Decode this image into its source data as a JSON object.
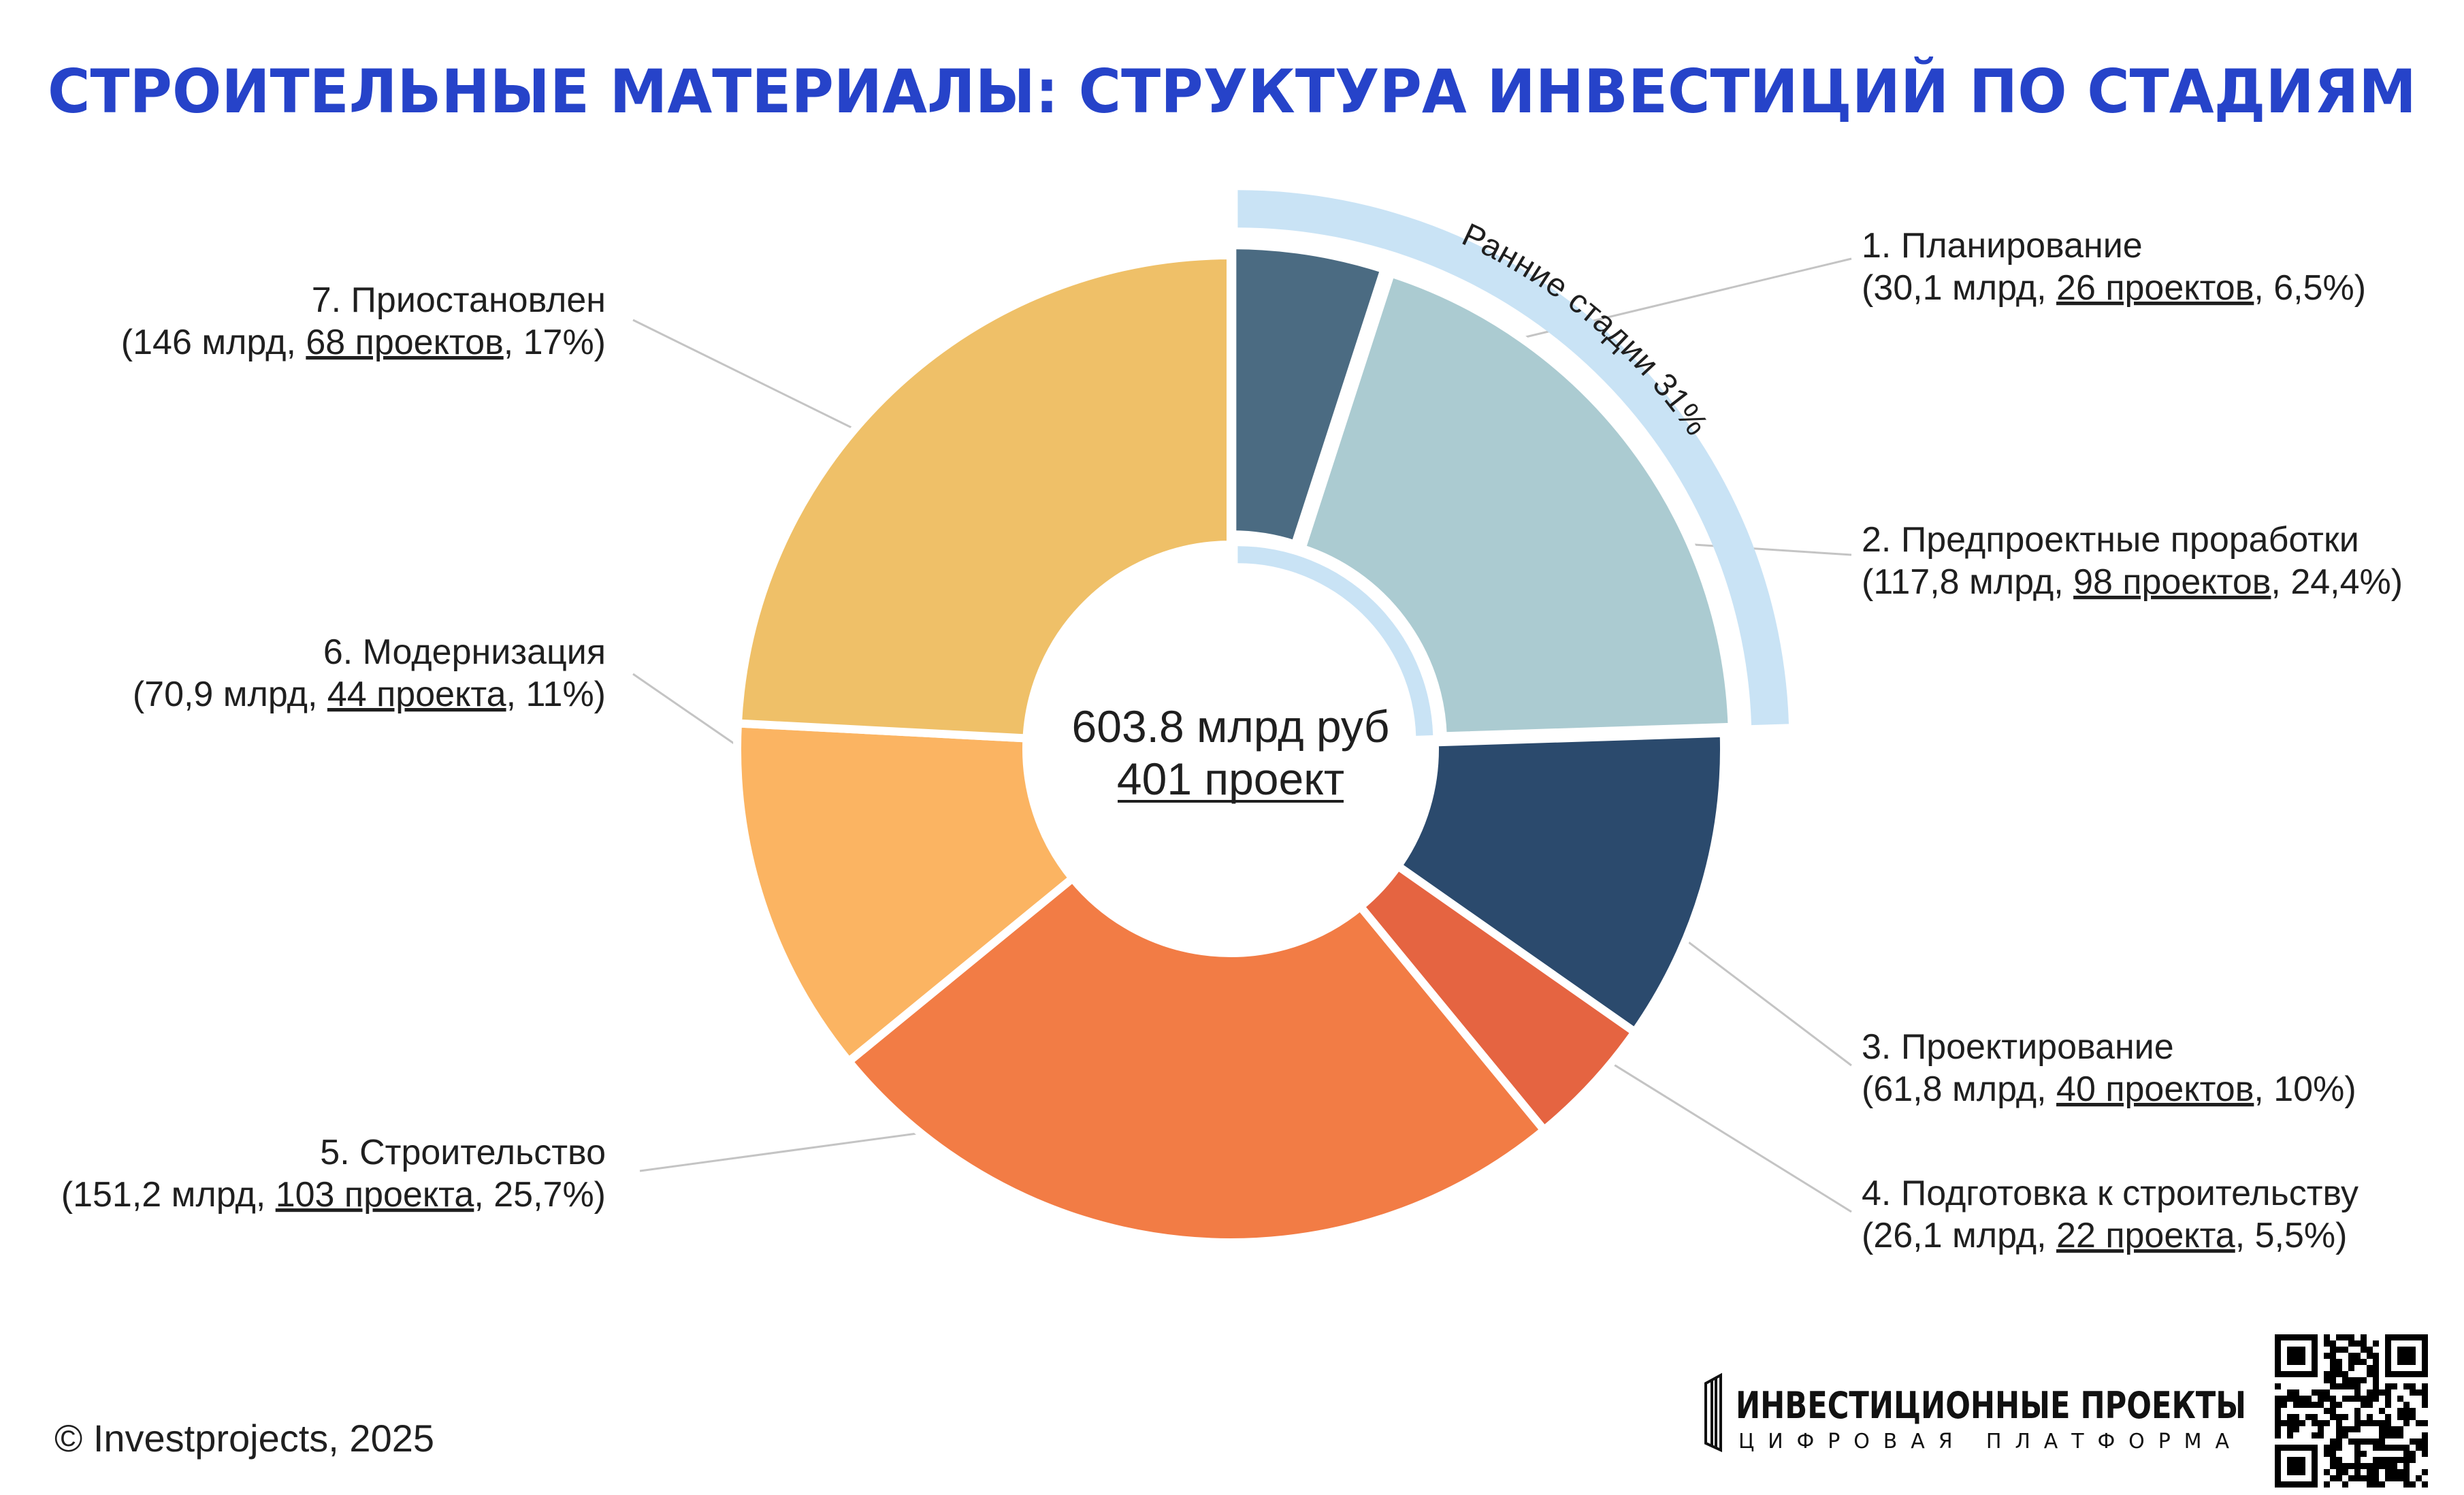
{
  "title": "СТРОИТЕЛЬНЫЕ МАТЕРИАЛЫ: СТРУКТУРА ИНВЕСТИЦИЙ ПО СТАДИЯМ",
  "center": {
    "line1": "603.8 млрд руб",
    "line2": "401 проект"
  },
  "early_stages_label": "Ранние стадии 31%",
  "early_stages_color": "#c9e3f5",
  "chart_data": {
    "type": "pie",
    "title": "СТРОИТЕЛЬНЫЕ МАТЕРИАЛЫ: СТРУКТУРА ИНВЕСТИЦИЙ ПО СТАДИЯМ",
    "unit": "млрд руб",
    "total": 603.8,
    "total_projects": 401,
    "slices": [
      {
        "name": "1. Планирование",
        "value": 30.1,
        "projects": 26,
        "percent": 6.5,
        "color": "#4b6b82",
        "detail": {
          "pre": "(30,1 млрд, ",
          "link": "26 проектов",
          "post": ", 6,5%)"
        }
      },
      {
        "name": "2. Предпроектные проработки",
        "value": 117.8,
        "projects": 98,
        "percent": 24.4,
        "color": "#abcbd1",
        "detail": {
          "pre": "(117,8 млрд, ",
          "link": "98 проектов",
          "post": ", 24,4%)"
        }
      },
      {
        "name": "3. Проектирование",
        "value": 61.8,
        "projects": 40,
        "percent": 10,
        "color": "#2b4a6d",
        "detail": {
          "pre": "(61,8 млрд, ",
          "link": "40 проектов",
          "post": ", 10%)"
        }
      },
      {
        "name": "4. Подготовка к строительству",
        "value": 26.1,
        "projects": 22,
        "percent": 5.5,
        "color": "#e56441",
        "detail": {
          "pre": "(26,1 млрд, ",
          "link": "22 проекта",
          "post": ", 5,5%)"
        }
      },
      {
        "name": "5. Строительство",
        "value": 151.2,
        "projects": 103,
        "percent": 25.7,
        "color": "#f27c45",
        "detail": {
          "pre": "(151,2 млрд, ",
          "link": "103 проекта",
          "post": ", 25,7%)"
        }
      },
      {
        "name": "6. Модернизация",
        "value": 70.9,
        "projects": 44,
        "percent": 11,
        "color": "#fbb462",
        "detail": {
          "pre": "(70,9 млрд, ",
          "link": "44 проекта",
          "post": ", 11%)"
        }
      },
      {
        "name": "7. Приостановлен",
        "value": 146,
        "projects": 68,
        "percent": 17,
        "color": "#efc068",
        "detail": {
          "pre": "(146 млрд, ",
          "link": "68 проектов",
          "post": ", 17%)"
        }
      }
    ],
    "legend": "none"
  },
  "footer": {
    "copyright": "© Investprojects, 2025",
    "logo_main": "ИНВЕСТИЦИОННЫЕ ПРОЕКТЫ",
    "logo_sub": "ЦИФРОВАЯ ПЛАТФОРМА",
    "logo_icon": "building-bars-icon",
    "qr_icon": "qr-code-icon"
  }
}
